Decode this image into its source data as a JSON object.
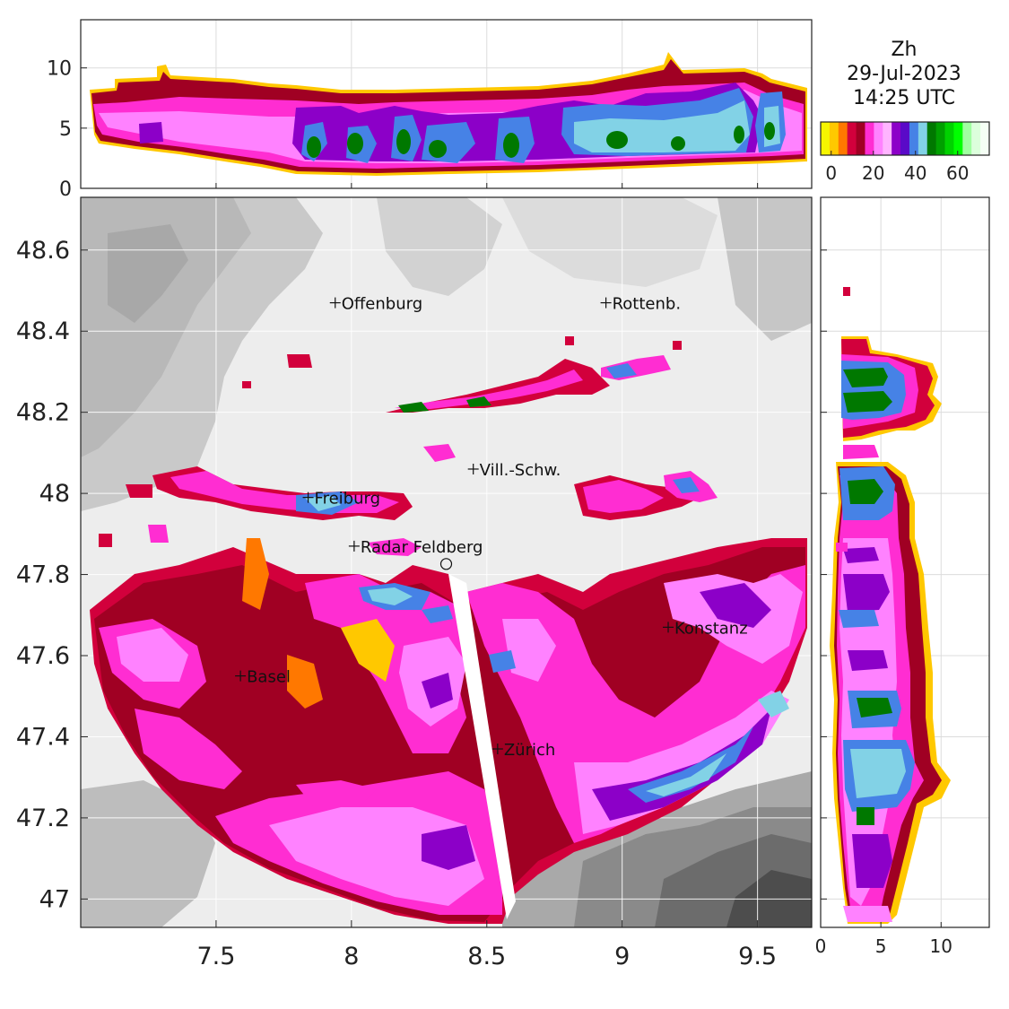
{
  "title": {
    "variable": "Zh",
    "date": "29-Jul-2023",
    "time": "14:25 UTC"
  },
  "colorbar": {
    "colors": [
      "#f6f600",
      "#ffc800",
      "#ff7800",
      "#d2003c",
      "#a00023",
      "#ff2dd2",
      "#ff82ff",
      "#ffb4ff",
      "#8c00c8",
      "#5a0ac8",
      "#4682e6",
      "#82d2e6",
      "#007800",
      "#00a000",
      "#00d200",
      "#00ff00",
      "#a0ffa0",
      "#dcffdc",
      "#f5fff5"
    ],
    "ticks": [
      "0",
      "20",
      "40",
      "60"
    ],
    "tick_values": [
      0,
      20,
      40,
      60
    ],
    "range": [
      -5,
      75
    ]
  },
  "map": {
    "x_ticks": [
      "7.5",
      "8",
      "8.5",
      "9",
      "9.5"
    ],
    "x_tick_values": [
      7.5,
      8,
      8.5,
      9,
      9.5
    ],
    "y_ticks": [
      "48.6",
      "48.4",
      "48.2",
      "48",
      "47.8",
      "47.6",
      "47.4",
      "47.2",
      "47"
    ],
    "y_tick_values": [
      48.6,
      48.4,
      48.2,
      48.0,
      47.8,
      47.6,
      47.4,
      47.2,
      47.0
    ],
    "xlim": [
      7.0,
      9.7
    ],
    "ylim": [
      46.93,
      48.73
    ],
    "radar": {
      "lon": 8.35,
      "lat": 47.826
    },
    "cities": [
      {
        "name": "Offenburg",
        "lon": 7.94,
        "lat": 48.47
      },
      {
        "name": "Rottenb.",
        "lon": 8.94,
        "lat": 48.47
      },
      {
        "name": "Vill.-Schw.",
        "lon": 8.45,
        "lat": 48.06
      },
      {
        "name": "Freiburg",
        "lon": 7.84,
        "lat": 47.99
      },
      {
        "name": "Radar Feldberg",
        "lon": 8.01,
        "lat": 47.87
      },
      {
        "name": "Konstanz",
        "lon": 9.17,
        "lat": 47.67
      },
      {
        "name": "Basel",
        "lon": 7.59,
        "lat": 47.55
      },
      {
        "name": "Zürich",
        "lon": 8.54,
        "lat": 47.37
      }
    ]
  },
  "top_panel": {
    "y_ticks": [
      "0",
      "5",
      "10"
    ],
    "y_tick_values": [
      0,
      5,
      10
    ],
    "ylim": [
      0,
      14
    ]
  },
  "right_panel": {
    "x_ticks": [
      "0",
      "5",
      "10"
    ],
    "x_tick_values": [
      0,
      5,
      10
    ],
    "xlim": [
      0,
      14
    ]
  }
}
